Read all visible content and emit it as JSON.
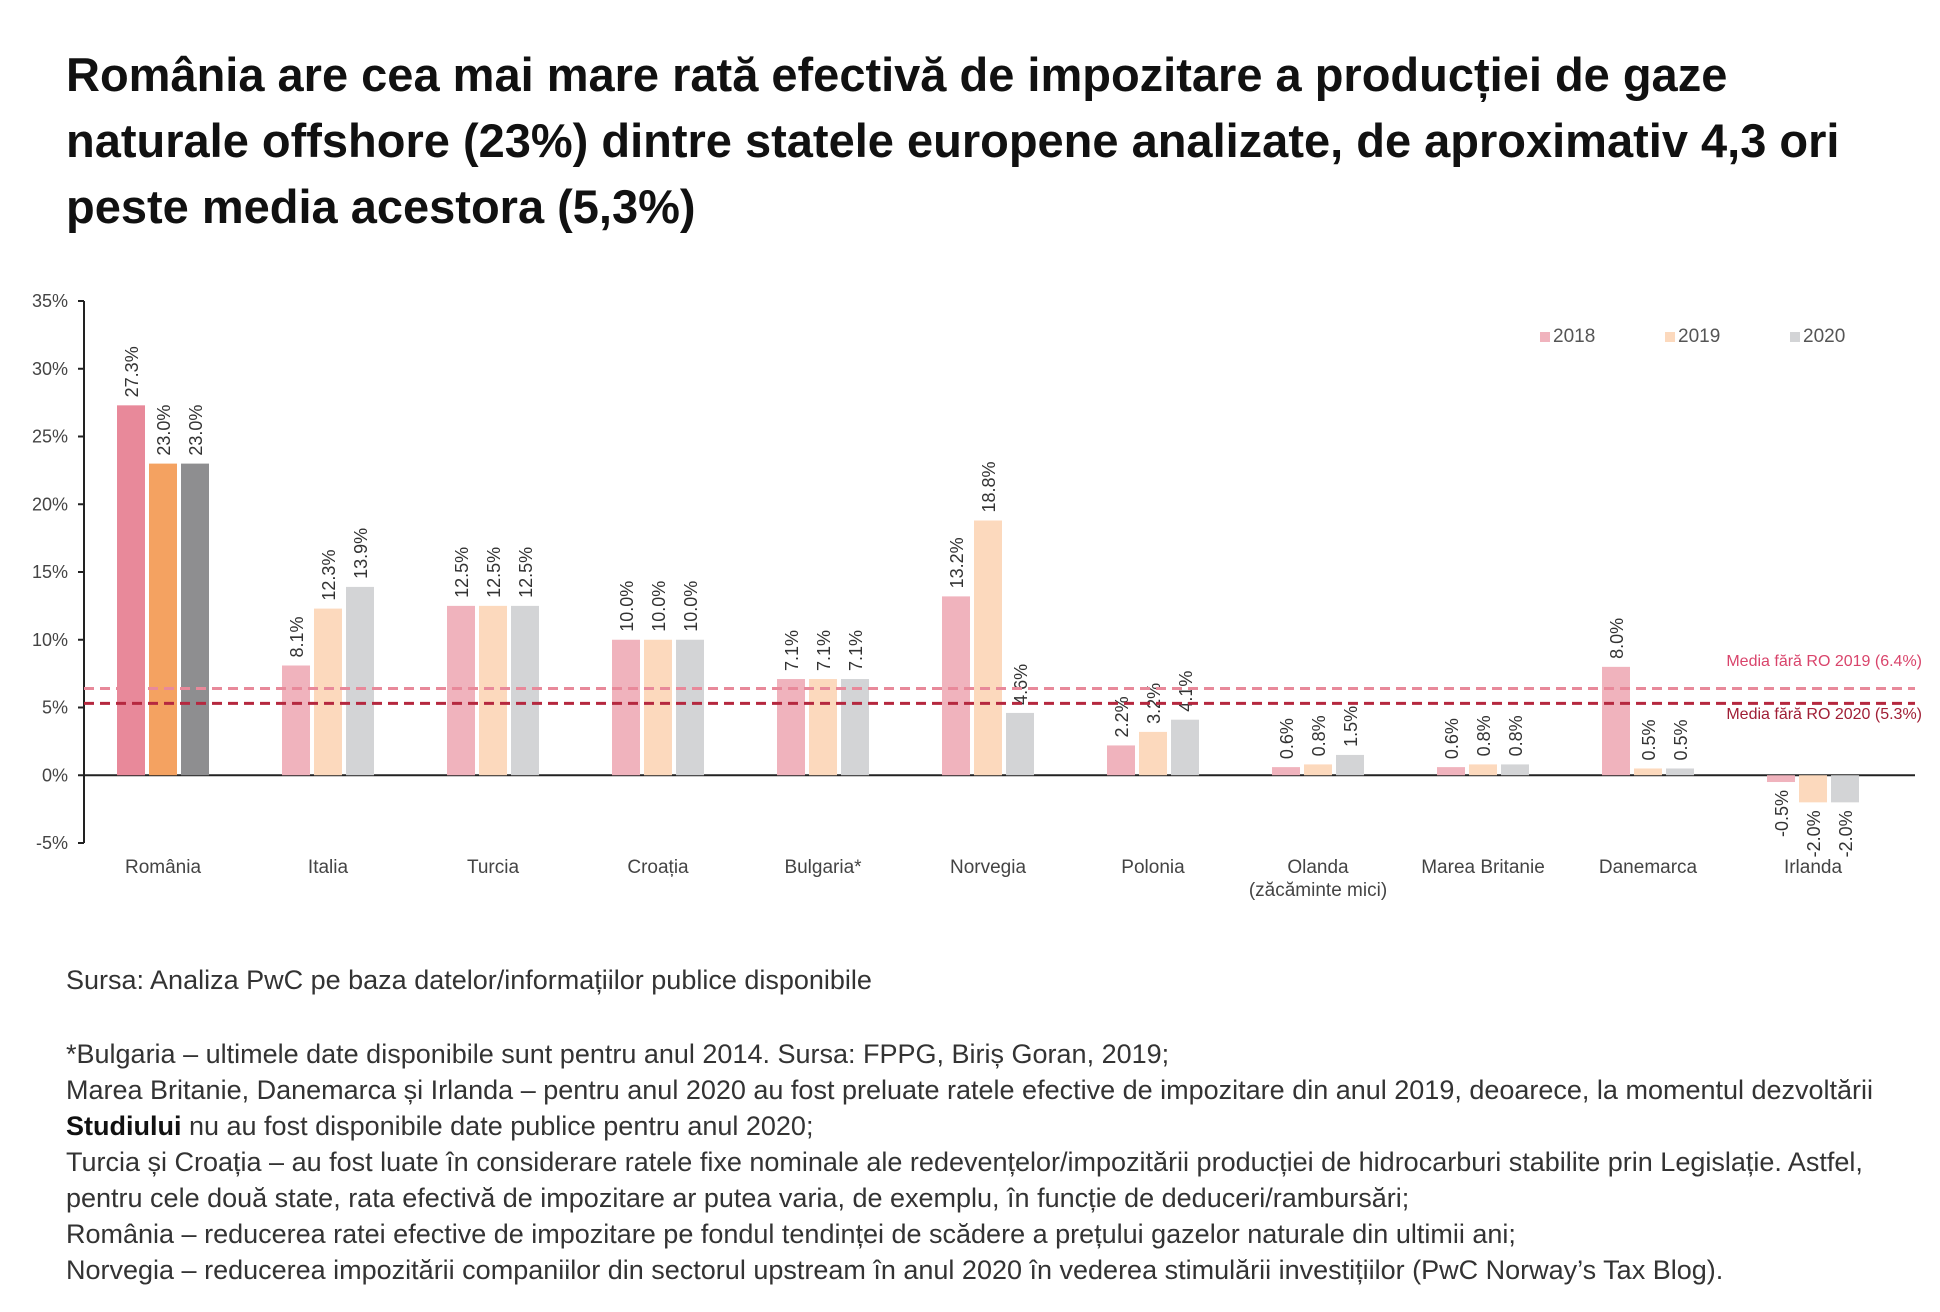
{
  "title": "România are cea mai mare rată efectivă de impozitare a producției de gaze naturale offshore (23%) dintre statele europene analizate, de aproximativ 4,3 ori peste media acestora (5,3%)",
  "chart_data": {
    "type": "bar",
    "title": "",
    "xlabel": "",
    "ylabel": "",
    "ylim": [
      -5,
      35
    ],
    "yticks": [
      "35%",
      "30%",
      "25%",
      "20%",
      "15%",
      "10%",
      "5%",
      "0%",
      "-5%"
    ],
    "ytick_values": [
      35,
      30,
      25,
      20,
      15,
      10,
      5,
      0,
      -5
    ],
    "grid": false,
    "legend_position": "top-right",
    "categories": [
      [
        "România"
      ],
      [
        "Italia"
      ],
      [
        "Turcia"
      ],
      [
        "Croația"
      ],
      [
        "Bulgaria*"
      ],
      [
        "Norvegia"
      ],
      [
        "Polonia"
      ],
      [
        "Olanda",
        "(zăcăminte mici)"
      ],
      [
        "Marea Britanie"
      ],
      [
        "Danemarca"
      ],
      [
        "Irlanda"
      ]
    ],
    "series": [
      {
        "name": "2018",
        "color": "#f0b3bd",
        "values": [
          27.3,
          8.1,
          12.5,
          10.0,
          7.1,
          13.2,
          2.2,
          0.6,
          0.6,
          8.0,
          -0.5
        ],
        "labels": [
          "27.3%",
          "8.1%",
          "12.5%",
          "10.0%",
          "7.1%",
          "13.2%",
          "2.2%",
          "0.6%",
          "0.6%",
          "8.0%",
          "-0.5%"
        ]
      },
      {
        "name": "2019",
        "color": "#fcd9bd",
        "values": [
          23.0,
          12.3,
          12.5,
          10.0,
          7.1,
          18.8,
          3.2,
          0.8,
          0.8,
          0.5,
          -2.0
        ],
        "labels": [
          "23.0%",
          "12.3%",
          "12.5%",
          "10.0%",
          "7.1%",
          "18.8%",
          "3.2%",
          "0.8%",
          "0.8%",
          "0.5%",
          "-2.0%"
        ]
      },
      {
        "name": "2020",
        "color": "#d3d4d6",
        "values": [
          23.0,
          13.9,
          12.5,
          10.0,
          7.1,
          4.6,
          4.1,
          1.5,
          0.8,
          0.5,
          -2.0
        ],
        "labels": [
          "23.0%",
          "13.9%",
          "12.5%",
          "10.0%",
          "7.1%",
          "4.6%",
          "4.1%",
          "1.5%",
          "0.8%",
          "0.5%",
          "-2.0%"
        ]
      }
    ],
    "highlight": {
      "category_index": 0,
      "colors": [
        "#e8899a",
        "#f4a261",
        "#8e8e90"
      ]
    },
    "reference_lines": [
      {
        "label": "Media fără RO 2019 (6.4%)",
        "value": 6.4,
        "color": "#e8899a",
        "label_color": "#d9446b"
      },
      {
        "label": "Media fără RO 2020 (5.3%)",
        "value": 5.3,
        "color": "#b5283f",
        "label_color": "#a01e35"
      }
    ]
  },
  "footer": {
    "source": "Sursa: Analiza PwC pe baza datelor/informațiilor publice disponibile",
    "notes": [
      "*Bulgaria – ultimele date disponibile sunt pentru anul 2014. Sursa: FPPG, Biriș Goran, 2019;",
      {
        "before": "Marea Britanie, Danemarca și Irlanda – pentru anul 2020 au fost preluate ratele efective de impozitare din anul 2019, deoarece, la momentul dezvoltării ",
        "bold": "Studiului",
        "after": " nu au fost disponibile date publice pentru anul 2020;"
      },
      "Turcia și Croația – au fost luate în considerare ratele fixe nominale ale redevențelor/impozitării producției de hidrocarburi stabilite prin Legislație. Astfel, pentru cele două state, rata efectivă de impozitare ar putea varia, de exemplu, în funcție de deduceri/rambursări;",
      "România – reducerea ratei efective de impozitare pe fondul tendinței de scădere a prețului gazelor naturale din ultimii ani;",
      "Norvegia – reducerea impozitării companiilor din sectorul upstream în anul 2020 în vederea stimulării investițiilor (PwC Norway’s Tax Blog)."
    ]
  }
}
